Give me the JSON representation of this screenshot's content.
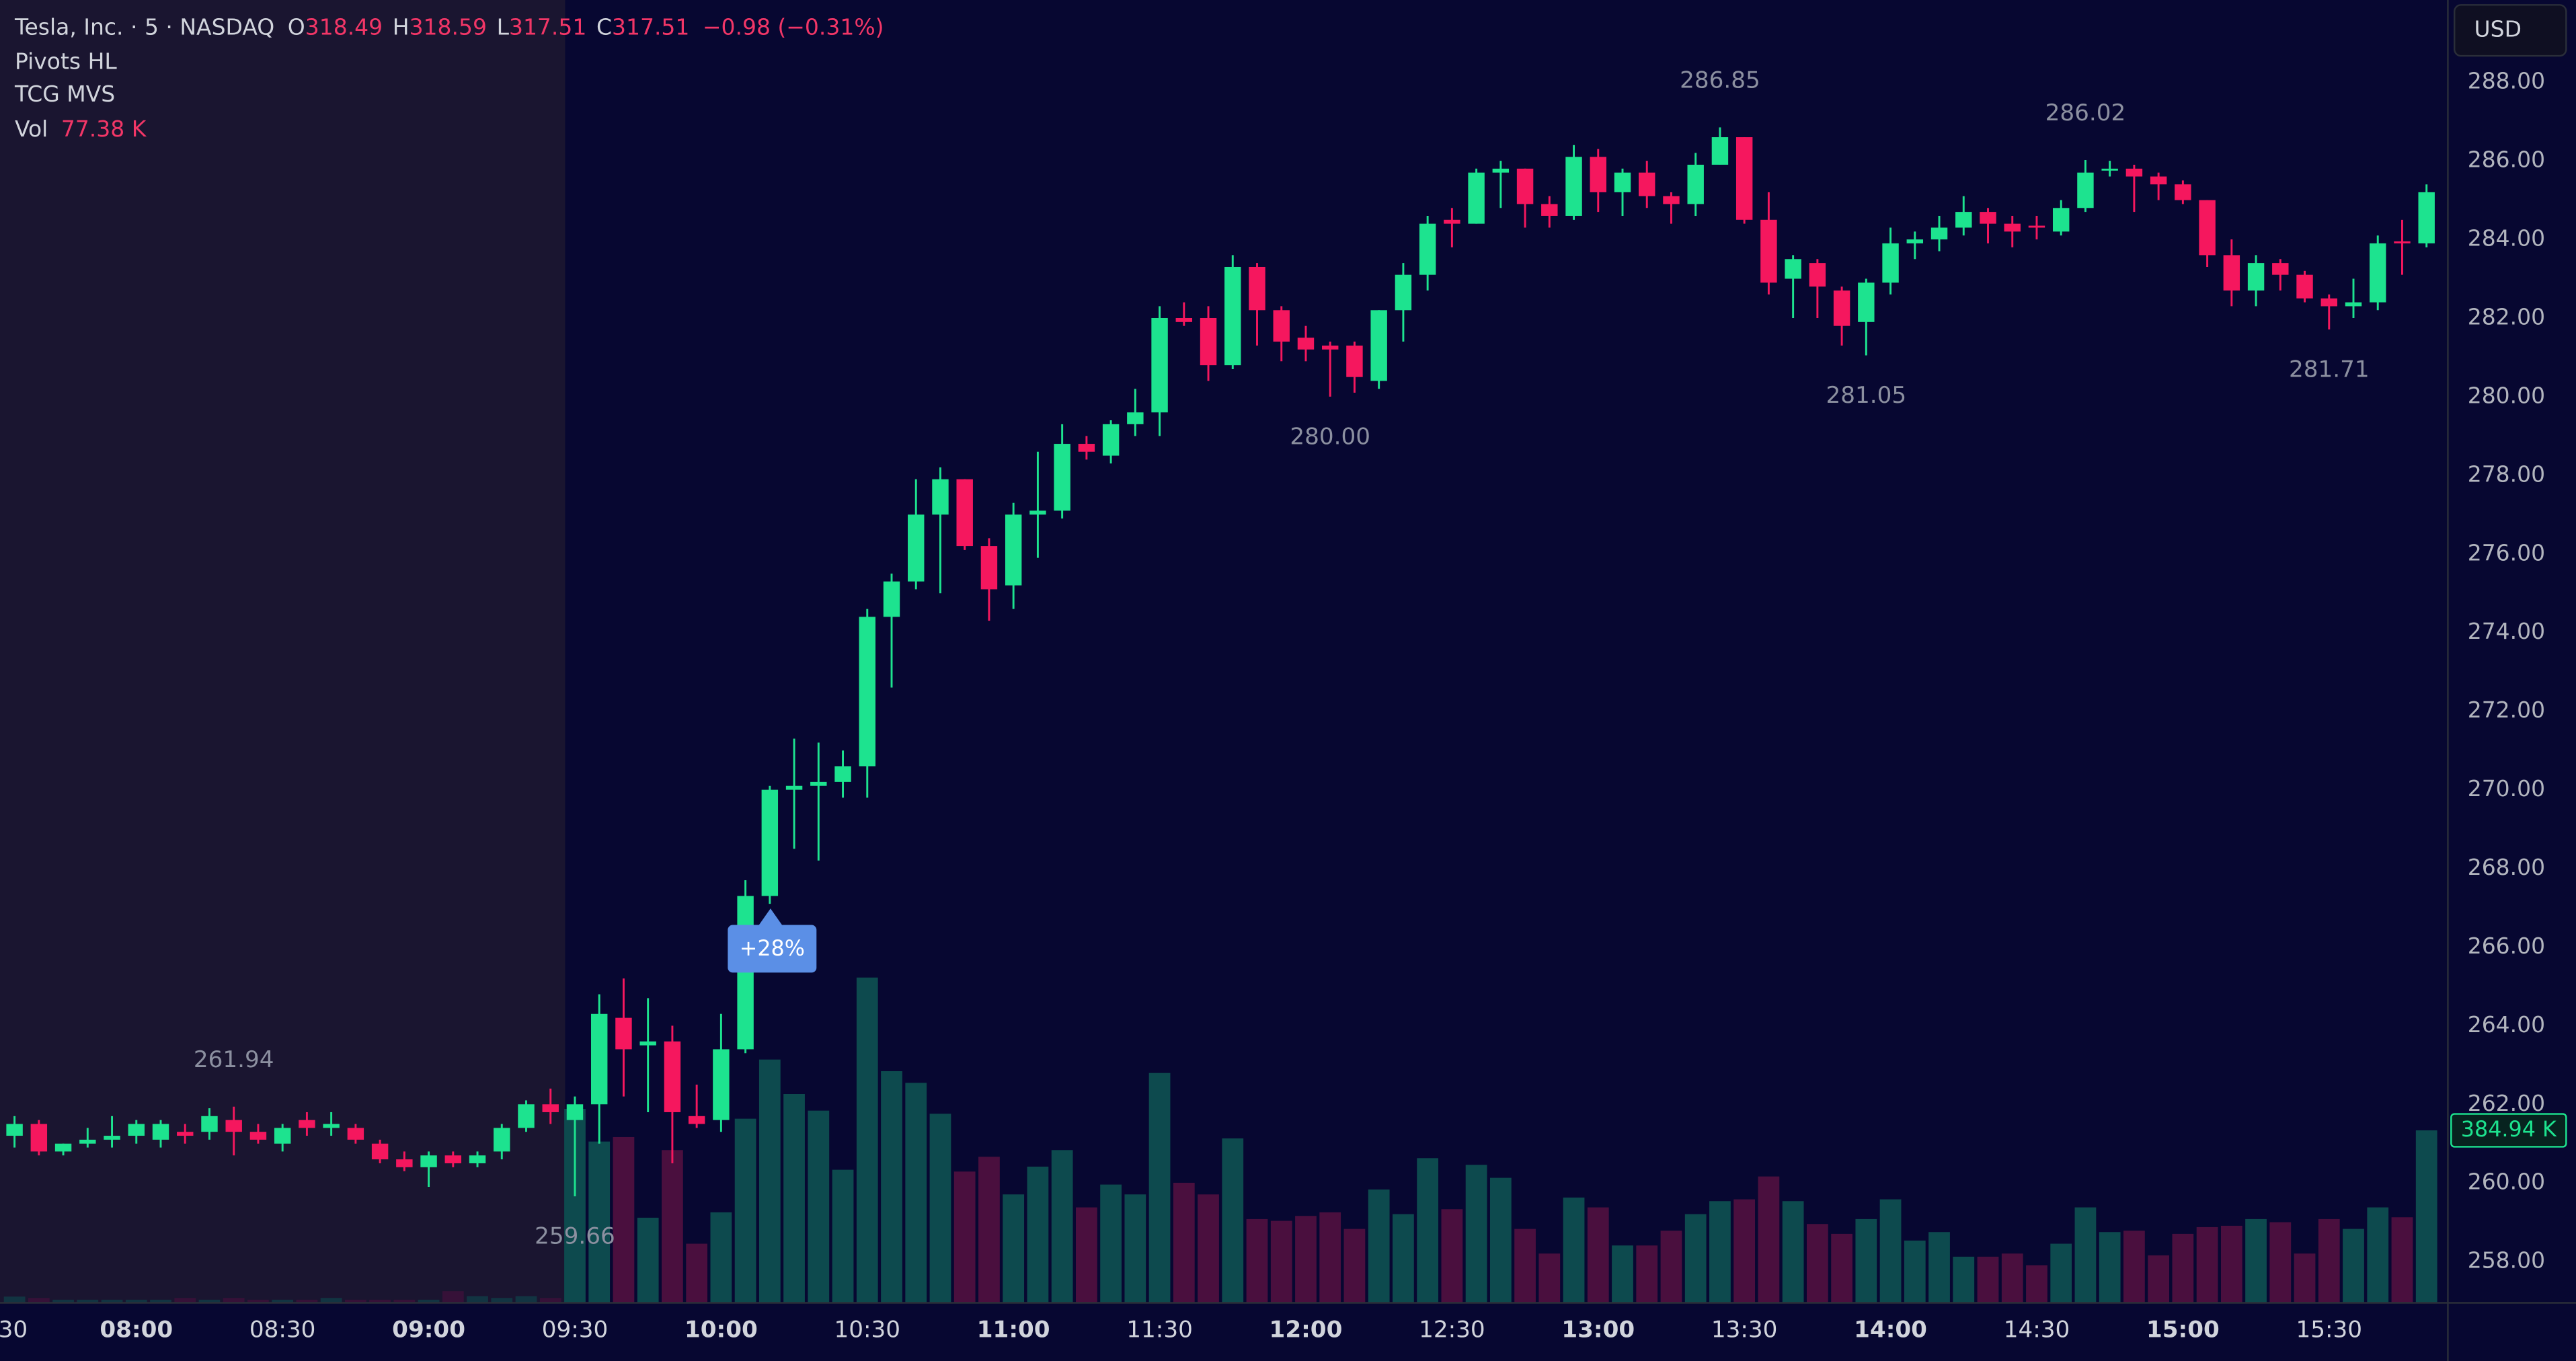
{
  "chart_data": {
    "type": "candlestick",
    "symbol": "Tesla, Inc. · 5 · NASDAQ",
    "legend": [
      {
        "key": "O",
        "value": 318.49
      },
      {
        "key": "H",
        "value": 318.59
      },
      {
        "key": "L",
        "value": 317.51
      },
      {
        "key": "C",
        "value": 317.51
      }
    ],
    "change": "−0.98 (−0.31%)",
    "indicators": [
      "Pivots HL",
      "TCG MVS"
    ],
    "volume_legend": {
      "key": "Vol",
      "value": "77.38 K"
    },
    "currency": "USD",
    "annotation": "+28%",
    "volume_label": "384.94 K",
    "categories": [
      "30",
      null,
      null,
      null,
      null,
      null,
      "08:00",
      null,
      null,
      null,
      null,
      null,
      "08:30",
      null,
      null,
      null,
      null,
      null,
      "09:00",
      null,
      null,
      null,
      null,
      null,
      "09:30",
      null,
      null,
      null,
      null,
      null,
      "10:00",
      null,
      null,
      null,
      null,
      null,
      "10:30",
      null,
      null,
      null,
      null,
      null,
      "11:00",
      null,
      null,
      null,
      null,
      null,
      "11:30",
      null,
      null,
      null,
      null,
      null,
      "12:00",
      null,
      null,
      null,
      null,
      null,
      "12:30",
      null,
      null,
      null,
      null,
      null,
      "13:00",
      null,
      null,
      null,
      null,
      null,
      "13:30",
      null,
      null,
      null,
      null,
      null,
      "14:00",
      null,
      null,
      null,
      null,
      null,
      "14:30",
      null,
      null,
      null,
      null,
      null,
      "15:00",
      null,
      null,
      null,
      null,
      null,
      "15:30",
      null,
      null,
      null,
      null
    ],
    "open": [
      null,
      261.2,
      261.5,
      260.8,
      261.0,
      261.1,
      261.2,
      261.1,
      261.3,
      261.3,
      261.6,
      261.3,
      261.0,
      261.6,
      261.4,
      261.4,
      261.0,
      260.6,
      260.4,
      260.7,
      260.5,
      260.8,
      261.4,
      262.0,
      261.6,
      262.0,
      264.2,
      263.5,
      263.6,
      261.7,
      261.6,
      263.4,
      267.3,
      270.0,
      270.1,
      270.2,
      270.6,
      274.4,
      275.3,
      277.0,
      277.9,
      276.2,
      275.2,
      277.0,
      277.1,
      278.8,
      278.5,
      279.3,
      279.6,
      282.0,
      282.0,
      280.8,
      283.3,
      282.2,
      281.5,
      281.3,
      281.3,
      280.4,
      282.2,
      283.1,
      284.5,
      284.4,
      285.7,
      285.8,
      284.9,
      284.6,
      286.1,
      285.2,
      285.7,
      285.1,
      284.9,
      285.9,
      286.6,
      284.5,
      283.0,
      283.4,
      282.7,
      281.9,
      282.9,
      283.9,
      284.0,
      284.3,
      284.7,
      284.4,
      284.35,
      284.2,
      284.8,
      285.75,
      285.8,
      285.6,
      285.4,
      285.0,
      283.6,
      282.7,
      283.4,
      283.1,
      282.5,
      282.3,
      282.4,
      283.95,
      283.9
    ],
    "high": [
      null,
      261.7,
      261.6,
      261.0,
      261.4,
      261.7,
      261.6,
      261.6,
      261.5,
      261.9,
      261.94,
      261.5,
      261.5,
      261.8,
      261.8,
      261.5,
      261.1,
      260.8,
      260.8,
      260.8,
      260.8,
      261.5,
      262.1,
      262.4,
      262.2,
      264.8,
      265.2,
      264.7,
      264.0,
      262.5,
      264.3,
      267.7,
      270.1,
      271.3,
      271.2,
      271.0,
      274.6,
      275.5,
      277.9,
      278.2,
      277.9,
      276.4,
      277.3,
      278.6,
      279.3,
      279.0,
      279.4,
      280.2,
      282.3,
      282.4,
      282.3,
      283.6,
      283.4,
      282.3,
      281.8,
      281.4,
      281.4,
      282.2,
      283.4,
      284.6,
      284.8,
      285.8,
      286.0,
      285.8,
      285.1,
      286.4,
      286.3,
      285.8,
      286.0,
      285.2,
      286.2,
      286.85,
      286.6,
      285.2,
      283.6,
      283.5,
      282.8,
      283.0,
      284.3,
      284.2,
      284.6,
      285.1,
      284.8,
      284.6,
      284.6,
      285.0,
      286.02,
      286.0,
      285.9,
      285.7,
      285.5,
      285.0,
      284.0,
      283.6,
      283.5,
      283.2,
      282.6,
      283.0,
      284.1,
      284.5,
      285.4
    ],
    "low": [
      null,
      260.9,
      260.7,
      260.7,
      260.9,
      260.9,
      261.0,
      260.9,
      261.0,
      261.1,
      260.7,
      261.0,
      260.8,
      261.2,
      261.2,
      261.0,
      260.5,
      260.3,
      259.9,
      260.4,
      260.4,
      260.6,
      261.3,
      261.5,
      259.66,
      261.0,
      262.2,
      261.8,
      260.5,
      261.4,
      261.3,
      263.3,
      267.1,
      268.5,
      268.2,
      269.8,
      269.8,
      272.6,
      275.1,
      275.0,
      276.1,
      274.3,
      274.6,
      275.9,
      276.9,
      278.4,
      278.3,
      279.0,
      279.0,
      281.8,
      280.4,
      280.7,
      281.3,
      280.9,
      280.9,
      280.0,
      280.1,
      280.2,
      281.4,
      282.7,
      283.8,
      284.4,
      284.8,
      284.3,
      284.3,
      284.5,
      284.7,
      284.6,
      284.8,
      284.4,
      284.6,
      285.9,
      284.4,
      282.6,
      282.0,
      282.0,
      281.3,
      281.05,
      282.6,
      283.5,
      283.7,
      284.1,
      283.9,
      283.8,
      284.0,
      284.1,
      284.7,
      285.6,
      284.7,
      285.0,
      284.9,
      283.3,
      282.3,
      282.3,
      282.7,
      282.4,
      281.71,
      282.0,
      282.2,
      283.1,
      283.8
    ],
    "close": [
      null,
      261.5,
      260.8,
      261.0,
      261.1,
      261.2,
      261.5,
      261.5,
      261.2,
      261.7,
      261.3,
      261.1,
      261.4,
      261.4,
      261.5,
      261.1,
      260.6,
      260.4,
      260.7,
      260.5,
      260.7,
      261.4,
      262.0,
      261.8,
      262.0,
      264.3,
      263.4,
      263.6,
      261.8,
      261.5,
      263.4,
      267.3,
      270.0,
      270.1,
      270.2,
      270.6,
      274.4,
      275.3,
      277.0,
      277.9,
      276.2,
      275.1,
      277.0,
      277.1,
      278.8,
      278.6,
      279.3,
      279.6,
      282.0,
      281.9,
      280.8,
      283.3,
      282.2,
      281.4,
      281.2,
      281.2,
      280.5,
      282.2,
      283.1,
      284.4,
      284.4,
      285.7,
      285.8,
      284.9,
      284.6,
      286.1,
      285.2,
      285.7,
      285.1,
      284.9,
      285.9,
      286.6,
      284.5,
      282.9,
      283.5,
      282.8,
      281.8,
      282.9,
      283.9,
      284.0,
      284.3,
      284.7,
      284.4,
      284.2,
      284.3,
      284.8,
      285.7,
      285.8,
      285.6,
      285.4,
      285.0,
      283.6,
      282.7,
      283.4,
      283.1,
      282.5,
      282.3,
      282.4,
      283.9,
      283.9,
      285.2
    ],
    "volume": [
      null,
      14000,
      11000,
      7000,
      7000,
      7000,
      7000,
      7000,
      11000,
      7000,
      11000,
      7000,
      7000,
      7000,
      11000,
      7000,
      7000,
      7000,
      7000,
      26000,
      15000,
      11000,
      15000,
      11000,
      433000,
      360000,
      370000,
      190000,
      341000,
      132000,
      202000,
      411000,
      543000,
      466000,
      429000,
      297000,
      726000,
      517000,
      491000,
      422000,
      293000,
      326000,
      242000,
      304000,
      341000,
      213000,
      264000,
      242000,
      513000,
      268000,
      242000,
      367000,
      187000,
      183000,
      194000,
      202000,
      165000,
      253000,
      198000,
      323000,
      209000,
      308000,
      279000,
      165000,
      110000,
      235000,
      213000,
      128000,
      128000,
      161000,
      198000,
      227000,
      231000,
      282000,
      227000,
      176000,
      154000,
      187000,
      231000,
      139000,
      158000,
      103000,
      103000,
      110000,
      84000,
      132000,
      213000,
      158000,
      161000,
      106000,
      154000,
      169000,
      172000,
      187000,
      180000,
      110000,
      187000,
      165000,
      213000,
      191000,
      384940
    ],
    "pivots": [
      {
        "value": 261.94,
        "label": "261.94"
      },
      {
        "value": 259.66,
        "label": "259.66"
      },
      {
        "value": 280,
        "label": "280.00"
      },
      {
        "value": 286.85,
        "label": "286.85"
      },
      {
        "value": 281.05,
        "label": "281.05"
      },
      {
        "value": 286.02,
        "label": "286.02"
      },
      {
        "value": 281.71,
        "label": "281.71"
      }
    ],
    "ylim": [
      256.95,
      290.09
    ],
    "yticks": [
      {
        "value": 288,
        "label": "288.00"
      },
      {
        "value": 286,
        "label": "286.00"
      },
      {
        "value": 284,
        "label": "284.00"
      },
      {
        "value": 282,
        "label": "282.00"
      },
      {
        "value": 280,
        "label": "280.00"
      },
      {
        "value": 278,
        "label": "278.00"
      },
      {
        "value": 276,
        "label": "276.00"
      },
      {
        "value": 274,
        "label": "274.00"
      },
      {
        "value": 272,
        "label": "272.00"
      },
      {
        "value": 270,
        "label": "270.00"
      },
      {
        "value": 268,
        "label": "268.00"
      },
      {
        "value": 266,
        "label": "266.00"
      },
      {
        "value": 264,
        "label": "264.00"
      },
      {
        "value": 262,
        "label": "262.00"
      },
      {
        "value": 260,
        "label": "260.00"
      },
      {
        "value": 258,
        "label": "258.00"
      }
    ],
    "grid": false,
    "up_color": "#1de38f",
    "down_color": "#f5175e",
    "volume_up_color": "#0d4a4e",
    "volume_down_color": "#4a0f3e"
  }
}
